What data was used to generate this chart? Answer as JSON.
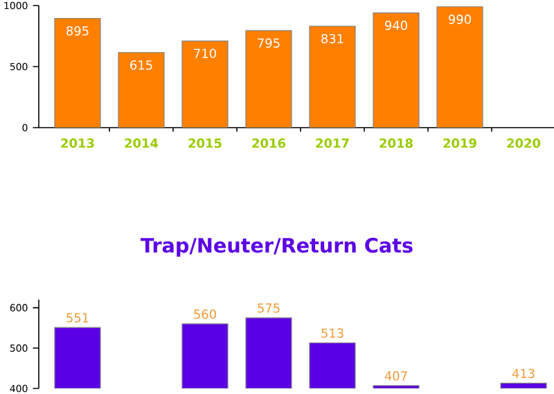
{
  "chart_data": [
    {
      "type": "bar",
      "categories": [
        "2013",
        "2014",
        "2015",
        "2016",
        "2017",
        "2018",
        "2019",
        "2020"
      ],
      "values": [
        895,
        615,
        710,
        795,
        831,
        940,
        990,
        null
      ],
      "color": "#ff8000",
      "ylim": [
        0,
        1000
      ],
      "yticks": [
        0,
        500,
        1000
      ],
      "data_labels": true
    },
    {
      "type": "bar",
      "title": "Trap/Neuter/Return Cats",
      "categories": [
        null,
        null,
        null,
        null,
        null,
        null,
        null,
        null
      ],
      "values": [
        551,
        null,
        560,
        575,
        513,
        407,
        null,
        413
      ],
      "color": "#5b00e6",
      "ylim": [
        400,
        620
      ],
      "yticks": [
        400,
        500,
        600
      ],
      "data_labels": true,
      "tick_labels": "y"
    }
  ]
}
